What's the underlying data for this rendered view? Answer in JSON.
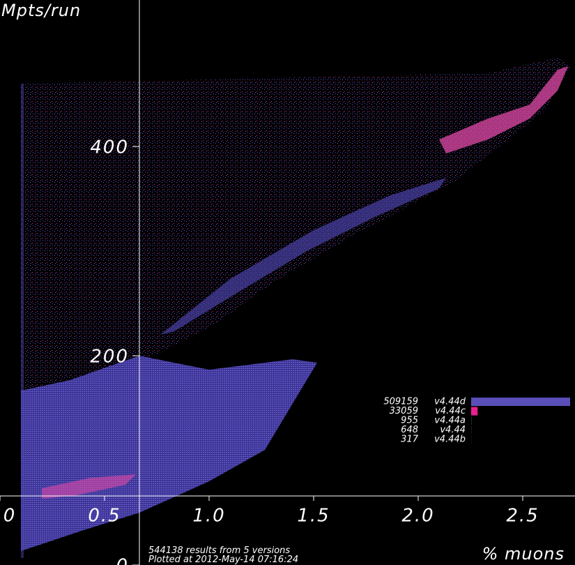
{
  "chart_data": {
    "type": "scatter",
    "y_label": "Mpts/run",
    "x_label": "% muons",
    "xlim": [
      0,
      2.75
    ],
    "ylim": [
      0,
      540
    ],
    "xticks": [
      0,
      0.5,
      {
        "value": 1,
        "label": "1.0"
      },
      1.5,
      {
        "value": 2,
        "label": "2.0"
      },
      2.5
    ],
    "yticks": [
      0,
      200,
      400
    ],
    "legend": [
      {
        "count": 509159,
        "name": "v4.44d",
        "color": "#5a4fb8"
      },
      {
        "count": 33059,
        "name": "v4.44c",
        "color": "#e8208e"
      },
      {
        "count": 955,
        "name": "v4.44a",
        "color": "#30c0c0"
      },
      {
        "count": 648,
        "name": "v4.44",
        "color": "#40c040"
      },
      {
        "count": 317,
        "name": "v4.44b",
        "color": "#e0c030"
      }
    ],
    "footer": [
      "544138 results from 5 versions",
      "Plotted at 2012-May-14 07:16:24"
    ]
  }
}
